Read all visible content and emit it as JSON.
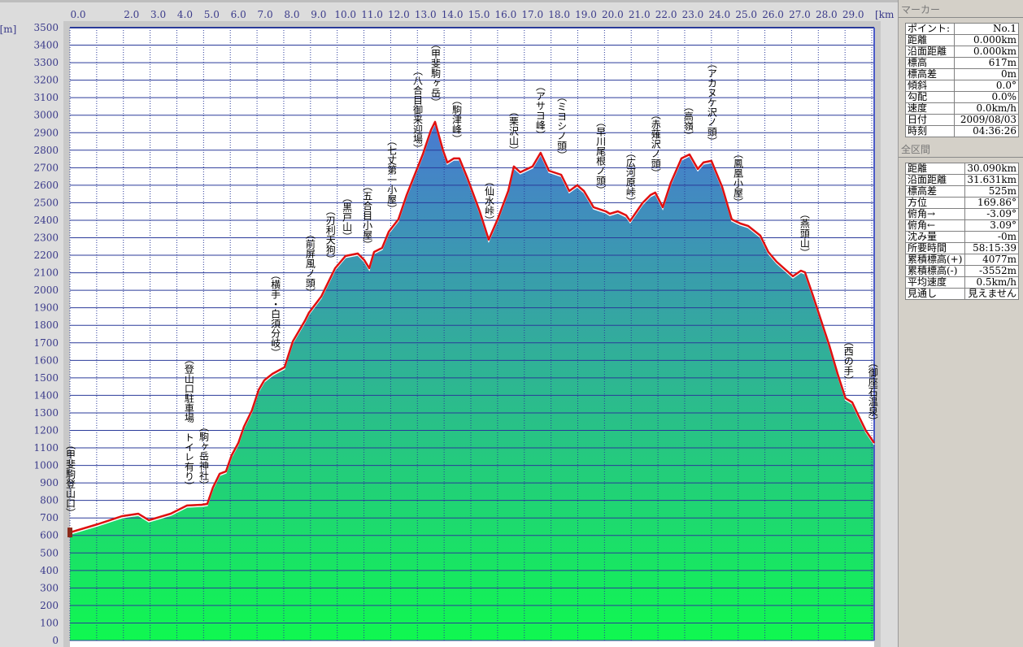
{
  "chart_data": {
    "type": "area",
    "xlabel": "[km]",
    "ylabel": "[m]",
    "xlim": [
      0,
      30.09
    ],
    "ylim": [
      0,
      3500
    ],
    "x_ticks": [
      "0.0",
      "2.0",
      "3.0",
      "4.0",
      "5.0",
      "6.0",
      "7.0",
      "8.0",
      "9.0",
      "10.0",
      "11.0",
      "12.0",
      "13.0",
      "14.0",
      "15.0",
      "16.0",
      "17.0",
      "18.0",
      "19.0",
      "20.0",
      "21.0",
      "22.0",
      "23.0",
      "24.0",
      "25.0",
      "26.0",
      "27.0",
      "28.0",
      "29.0"
    ],
    "y_ticks": [
      3500,
      3400,
      3300,
      3200,
      3100,
      3000,
      2900,
      2800,
      2700,
      2600,
      2500,
      2400,
      2300,
      2200,
      2100,
      2000,
      1900,
      1800,
      1700,
      1600,
      1500,
      1400,
      1300,
      1200,
      1100,
      1000,
      900,
      800,
      700,
      600,
      500,
      400,
      300,
      200,
      100,
      0
    ],
    "grid": true,
    "colors": {
      "line": "#e01010",
      "fill_top": "#4a78d4",
      "fill_mid": "#34a8a0",
      "fill_bottom": "#10f850",
      "grid": "#2a3a9a"
    },
    "profile": [
      [
        0.0,
        617
      ],
      [
        1.03,
        664
      ],
      [
        1.95,
        710
      ],
      [
        2.56,
        724
      ],
      [
        2.95,
        687
      ],
      [
        3.77,
        724
      ],
      [
        4.38,
        771
      ],
      [
        4.93,
        775
      ],
      [
        5.14,
        780
      ],
      [
        5.35,
        873
      ],
      [
        5.6,
        952
      ],
      [
        5.84,
        966
      ],
      [
        6.05,
        1058
      ],
      [
        6.3,
        1128
      ],
      [
        6.51,
        1221
      ],
      [
        6.81,
        1314
      ],
      [
        7.06,
        1430
      ],
      [
        7.27,
        1486
      ],
      [
        7.58,
        1523
      ],
      [
        8.03,
        1560
      ],
      [
        8.34,
        1708
      ],
      [
        8.79,
        1825
      ],
      [
        8.94,
        1871
      ],
      [
        9.4,
        1964
      ],
      [
        9.7,
        2057
      ],
      [
        9.92,
        2126
      ],
      [
        10.31,
        2196
      ],
      [
        10.77,
        2210
      ],
      [
        11.01,
        2173
      ],
      [
        11.2,
        2126
      ],
      [
        11.38,
        2219
      ],
      [
        11.68,
        2242
      ],
      [
        11.93,
        2335
      ],
      [
        12.29,
        2405
      ],
      [
        12.6,
        2544
      ],
      [
        12.9,
        2660
      ],
      [
        13.2,
        2776
      ],
      [
        13.51,
        2915
      ],
      [
        13.66,
        2962
      ],
      [
        13.96,
        2799
      ],
      [
        14.12,
        2730
      ],
      [
        14.36,
        2753
      ],
      [
        14.57,
        2753
      ],
      [
        14.88,
        2637
      ],
      [
        15.33,
        2451
      ],
      [
        15.67,
        2289
      ],
      [
        16.0,
        2405
      ],
      [
        16.4,
        2567
      ],
      [
        16.61,
        2707
      ],
      [
        16.85,
        2674
      ],
      [
        17.31,
        2707
      ],
      [
        17.61,
        2785
      ],
      [
        17.92,
        2683
      ],
      [
        18.38,
        2660
      ],
      [
        18.68,
        2567
      ],
      [
        18.98,
        2600
      ],
      [
        19.23,
        2567
      ],
      [
        19.59,
        2474
      ],
      [
        20.05,
        2451
      ],
      [
        20.2,
        2437
      ],
      [
        20.5,
        2451
      ],
      [
        20.81,
        2428
      ],
      [
        20.96,
        2396
      ],
      [
        21.42,
        2498
      ],
      [
        21.72,
        2544
      ],
      [
        21.9,
        2558
      ],
      [
        22.18,
        2474
      ],
      [
        22.48,
        2614
      ],
      [
        22.88,
        2753
      ],
      [
        23.18,
        2776
      ],
      [
        23.49,
        2693
      ],
      [
        23.7,
        2730
      ],
      [
        24.0,
        2739
      ],
      [
        24.4,
        2591
      ],
      [
        24.76,
        2405
      ],
      [
        25.07,
        2382
      ],
      [
        25.37,
        2368
      ],
      [
        25.83,
        2312
      ],
      [
        26.13,
        2219
      ],
      [
        26.44,
        2163
      ],
      [
        27.05,
        2080
      ],
      [
        27.35,
        2112
      ],
      [
        27.5,
        2103
      ],
      [
        27.81,
        1964
      ],
      [
        28.11,
        1825
      ],
      [
        28.41,
        1685
      ],
      [
        28.72,
        1523
      ],
      [
        29.02,
        1383
      ],
      [
        29.27,
        1360
      ],
      [
        29.48,
        1291
      ],
      [
        29.78,
        1198
      ],
      [
        30.09,
        1128
      ]
    ],
    "waypoints": [
      {
        "name": "甲斐駒登山口",
        "km": 0.0
      },
      {
        "name": "登山口駐車場　トイレ有り",
        "km": 4.44
      },
      {
        "name": "駒ヶ岳神社",
        "km": 4.99
      },
      {
        "name": "横手・白須分岐",
        "km": 7.67
      },
      {
        "name": "前屏風ノ頭",
        "km": 8.97
      },
      {
        "name": "刃利天狗",
        "km": 9.73
      },
      {
        "name": "黒戸山",
        "km": 10.35
      },
      {
        "name": "五合目小屋",
        "km": 11.11
      },
      {
        "name": "七丈第一小屋",
        "km": 12.02
      },
      {
        "name": "八合目御来迎場",
        "km": 12.99
      },
      {
        "name": "甲斐駒ヶ岳",
        "km": 13.66
      },
      {
        "name": "駒津峰",
        "km": 14.45
      },
      {
        "name": "仙水峠",
        "km": 15.67
      },
      {
        "name": "栗沢山",
        "km": 16.58
      },
      {
        "name": "アサヨ峰",
        "km": 17.58
      },
      {
        "name": "ミヨシノ頭",
        "km": 18.38
      },
      {
        "name": "早川尾根ノ頭",
        "km": 19.84
      },
      {
        "name": "広河原峠",
        "km": 20.96
      },
      {
        "name": "赤薙沢ノ頭",
        "km": 21.9
      },
      {
        "name": "高嶺",
        "km": 23.12
      },
      {
        "name": "アカヌケ沢ノ頭",
        "km": 24.0
      },
      {
        "name": "鳳凰小屋",
        "km": 24.98
      },
      {
        "name": "燕頭山",
        "km": 27.47
      },
      {
        "name": "西の手",
        "km": 29.11
      },
      {
        "name": "御座石温泉",
        "km": 30.02
      }
    ]
  },
  "marker": {
    "title": "マーカー",
    "rows": [
      {
        "label": "ポイント:",
        "value": "No.1"
      },
      {
        "label": "距離",
        "value": "0.000km"
      },
      {
        "label": "沿面距離",
        "value": "0.000km"
      },
      {
        "label": "標高",
        "value": "617m"
      },
      {
        "label": "標高差",
        "value": "0m"
      },
      {
        "label": "傾斜",
        "value": "0.0°"
      },
      {
        "label": "勾配",
        "value": "0.0%"
      },
      {
        "label": "速度",
        "value": "0.0km/h"
      },
      {
        "label": "日付",
        "value": "2009/08/03"
      },
      {
        "label": "時刻",
        "value": "04:36:26"
      }
    ]
  },
  "total": {
    "title": "全区間",
    "rows": [
      {
        "label": "距離",
        "value": "30.090km"
      },
      {
        "label": "沿面距離",
        "value": "31.631km"
      },
      {
        "label": "標高差",
        "value": "525m"
      },
      {
        "label": "方位",
        "value": "169.86°"
      },
      {
        "label": "俯角→",
        "value": "-3.09°"
      },
      {
        "label": "俯角←",
        "value": "3.09°"
      },
      {
        "label": "沈み量",
        "value": "-0m"
      },
      {
        "label": "所要時間",
        "value": "58:15:39"
      },
      {
        "label": "累積標高(+)",
        "value": "4077m"
      },
      {
        "label": "累積標高(-)",
        "value": "-3552m"
      },
      {
        "label": "平均速度",
        "value": "0.5km/h"
      },
      {
        "label": "見通し",
        "value": "見えません"
      }
    ]
  }
}
